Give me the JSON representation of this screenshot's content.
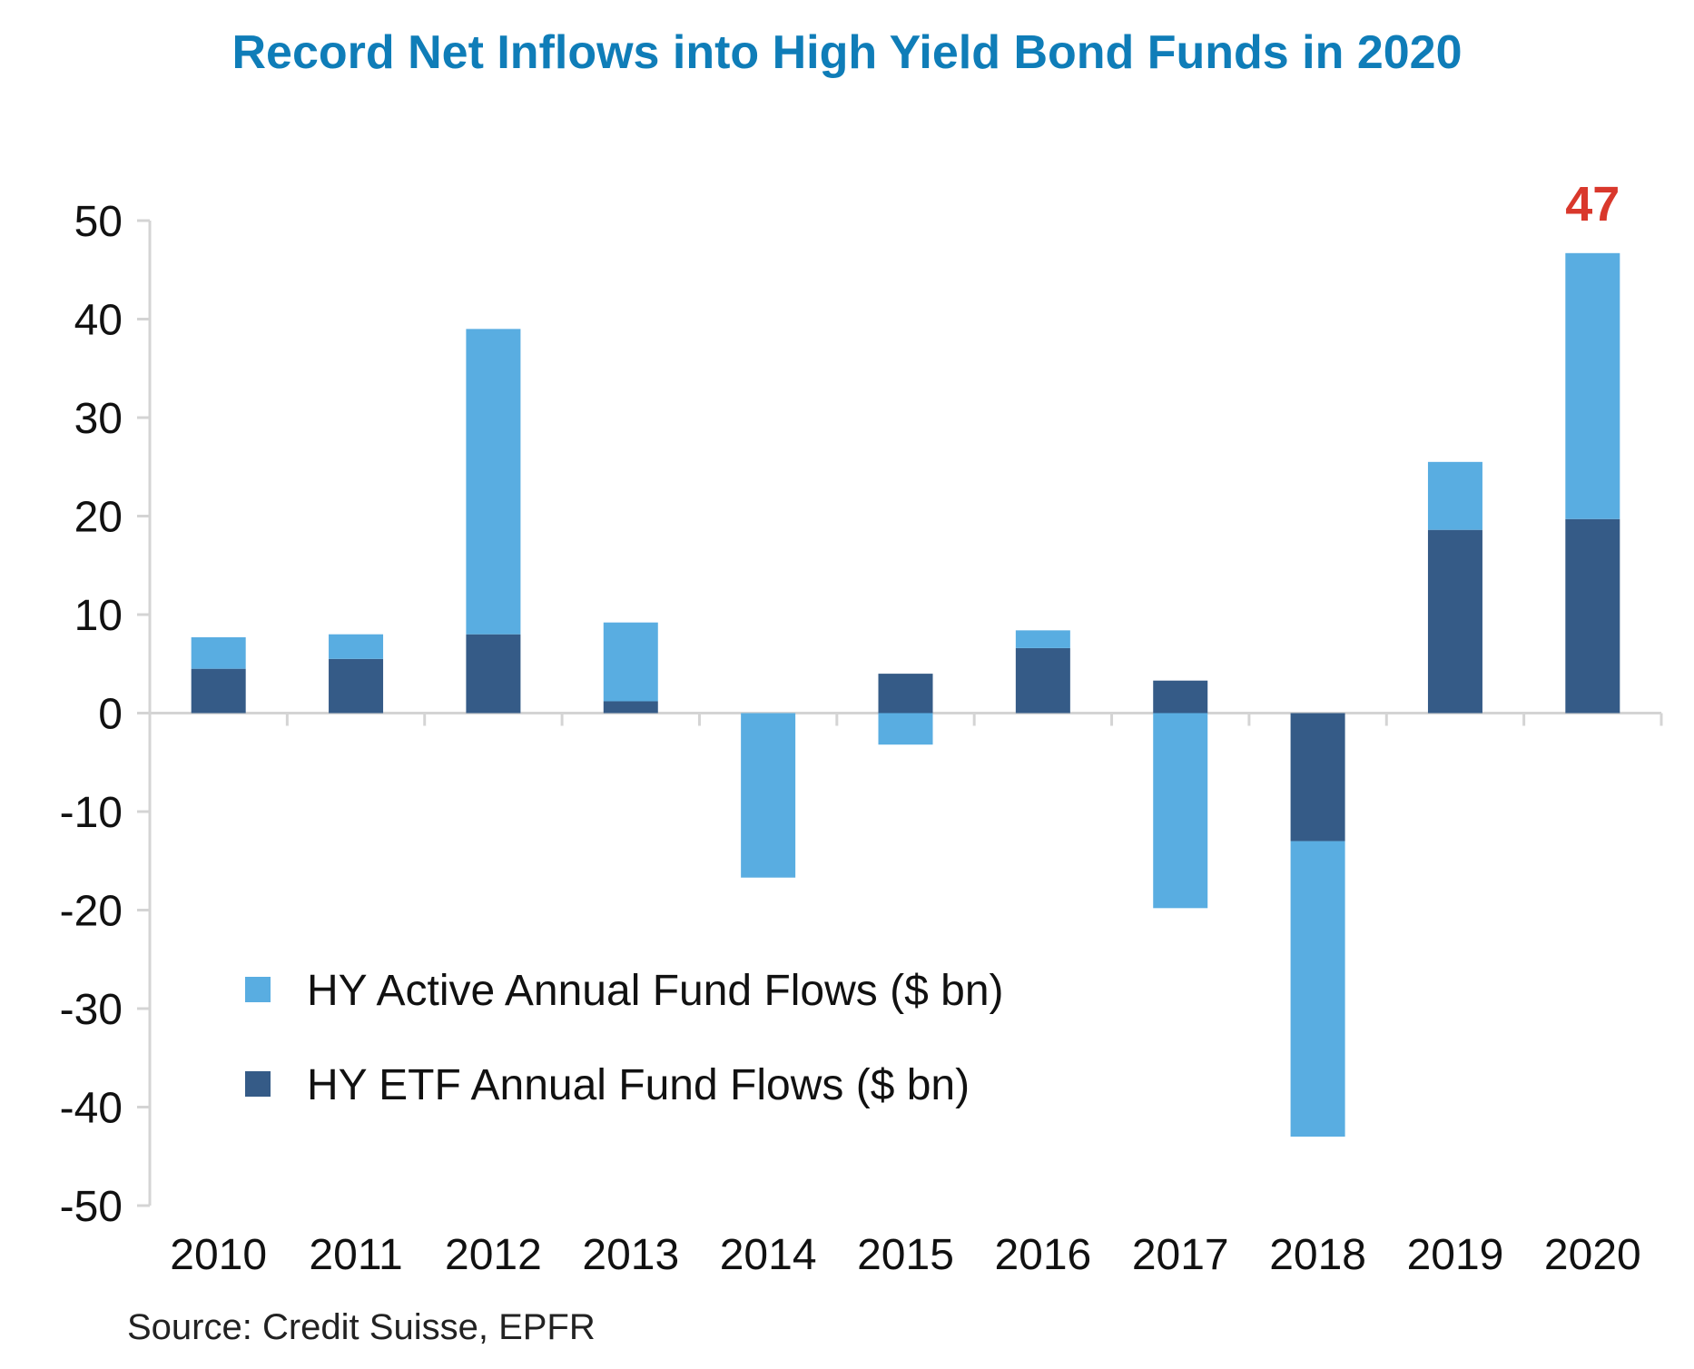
{
  "chart_data": {
    "type": "bar",
    "stacked": true,
    "title": "Record Net Inflows into High Yield Bond Funds in 2020",
    "categories": [
      "2010",
      "2011",
      "2012",
      "2013",
      "2014",
      "2015",
      "2016",
      "2017",
      "2018",
      "2019",
      "2020"
    ],
    "series": [
      {
        "name": "HY ETF Annual Fund Flows ($ bn)",
        "color": "#355b87",
        "values": [
          4.5,
          5.5,
          8,
          1.2,
          0,
          4,
          6.6,
          3.3,
          -13,
          18.6,
          19.7
        ]
      },
      {
        "name": "HY Active Annual Fund Flows ($ bn)",
        "color": "#59ade1",
        "values": [
          3.2,
          2.5,
          31,
          8,
          -16.7,
          -3.2,
          1.8,
          -19.8,
          -30,
          6.9,
          27
        ]
      }
    ],
    "legend_order": [
      1,
      0
    ],
    "legend_position": "lower-left",
    "yticks": [
      "50",
      "40",
      "30",
      "20",
      "10",
      "0",
      "-10",
      "-20",
      "-30",
      "-40",
      "-50"
    ],
    "ylim": [
      -50,
      50
    ],
    "xlabel": "",
    "ylabel": "",
    "grid": false,
    "annotations": [
      {
        "category": "2020",
        "text": "47",
        "color": "#d9382c"
      }
    ]
  },
  "source": "Source: Credit Suisse, EPFR"
}
